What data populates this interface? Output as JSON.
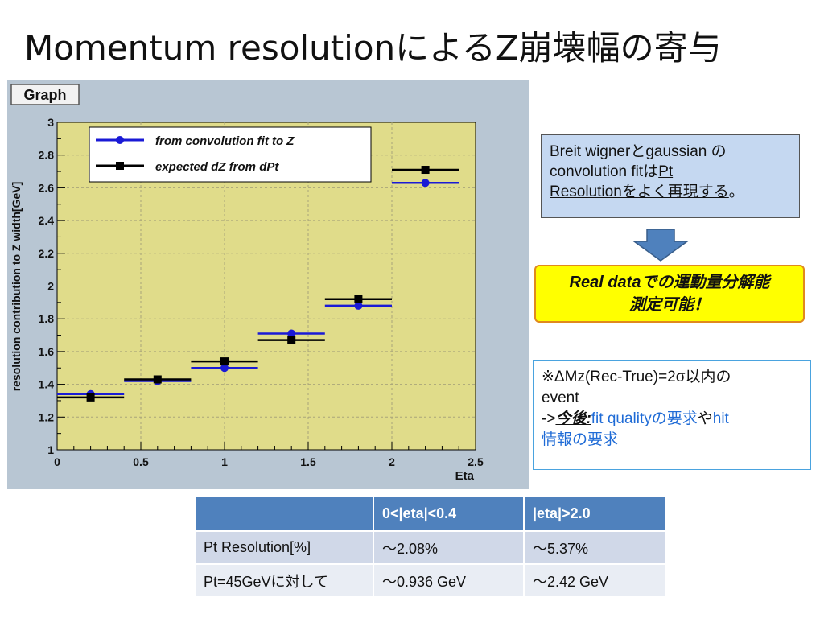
{
  "title": "Momentum resolutionによるZ崩壊幅の寄与",
  "chart_data": {
    "type": "scatter",
    "frame_label": "Graph",
    "xlabel": "Eta",
    "ylabel": "resolution contribution to Z width[GeV]",
    "xlim": [
      0,
      2.5
    ],
    "ylim": [
      1,
      3
    ],
    "xticks": [
      "0",
      "0.5",
      "1",
      "1.5",
      "2",
      "2.5"
    ],
    "yticks": [
      "1",
      "1.2",
      "1.4",
      "1.6",
      "1.8",
      "2",
      "2.2",
      "2.4",
      "2.6",
      "2.8",
      "3"
    ],
    "x_centers": [
      0.2,
      0.6,
      1.0,
      1.4,
      1.8,
      2.2
    ],
    "x_halfwidth": 0.2,
    "series": [
      {
        "name": "from convolution fit to Z",
        "color": "#1a1ad6",
        "marker": "circle",
        "values": [
          1.34,
          1.42,
          1.5,
          1.71,
          1.88,
          2.63
        ]
      },
      {
        "name": "expected dZ from dPt",
        "color": "#000000",
        "marker": "square",
        "values": [
          1.32,
          1.43,
          1.54,
          1.67,
          1.92,
          2.71
        ]
      }
    ],
    "legend_position": "top",
    "grid": true,
    "colors": {
      "plot_bg": "#e0dc8a",
      "frame_bg": "#b8c6d3",
      "grid": "#a9a57a"
    }
  },
  "note1": {
    "line1": "Breit wignerとgaussian の",
    "line2_pre": "convolution fitは",
    "line2_u": "Pt",
    "line3_u": "Resolutionをよく再現する",
    "line3_post": "。"
  },
  "note2": {
    "line1": "Real dataでの運動量分解能",
    "line2": "測定可能！"
  },
  "note3": {
    "line1": "※ΔMz(Rec-True)=2σ以内の",
    "line2": "event",
    "line3_pre": "->",
    "line3_em": "今後:",
    "line3_blue1": "fit qualityの要求",
    "line3_mid": "や",
    "line3_blue2": "hit",
    "line4_blue": "情報の要求"
  },
  "table": {
    "headers": [
      "",
      "0<|eta|<0.4",
      "|eta|>2.0"
    ],
    "rows": [
      [
        "Pt Resolution[%]",
        "～2.08%",
        "～5.37%"
      ],
      [
        "Pt=45GeVに対して",
        "～0.936 GeV",
        "～2.42 GeV"
      ]
    ]
  }
}
